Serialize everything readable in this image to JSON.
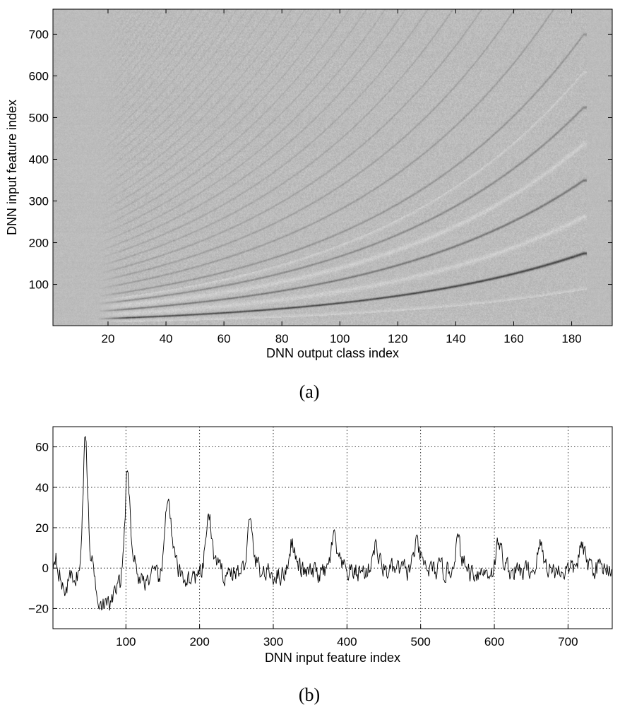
{
  "chart_data": [
    {
      "type": "heatmap",
      "caption": "(a)",
      "xlabel": "DNN output class index",
      "ylabel": "DNN input feature index",
      "xlim": [
        1,
        194
      ],
      "ylim": [
        1,
        760
      ],
      "xticks": [
        20,
        40,
        60,
        80,
        100,
        120,
        140,
        160,
        180
      ],
      "yticks": [
        100,
        200,
        300,
        400,
        500,
        600,
        700
      ],
      "colormap": "gray",
      "background_color": "#bcbcbc",
      "description_of_content": {
        "harmonic_onset_class": 24,
        "harmonic_end_class": 184,
        "harmonics": [
          {
            "order": 1,
            "feature_at_class_24": 20,
            "feature_at_class_184": 175
          },
          {
            "order": 2,
            "feature_at_class_24": 40,
            "feature_at_class_184": 355
          },
          {
            "order": 3,
            "feature_at_class_24": 60,
            "feature_at_class_184": 540
          },
          {
            "order": 4,
            "feature_at_class_24": 80,
            "feature_at_class_184": 720
          }
        ]
      }
    },
    {
      "type": "line",
      "caption": "(b)",
      "xlabel": "DNN input feature index",
      "ylabel": "",
      "xlim": [
        1,
        760
      ],
      "ylim": [
        -30,
        70
      ],
      "xticks": [
        100,
        200,
        300,
        400,
        500,
        600,
        700
      ],
      "yticks": [
        -20,
        0,
        20,
        40,
        60
      ],
      "grid": true,
      "series": [
        {
          "peaks": [
            {
              "x": 45,
              "y": 63
            },
            {
              "x": 102,
              "y": 44
            },
            {
              "x": 157,
              "y": 37
            },
            {
              "x": 212,
              "y": 26
            },
            {
              "x": 268,
              "y": 21
            },
            {
              "x": 325,
              "y": 13
            },
            {
              "x": 382,
              "y": 14
            },
            {
              "x": 438,
              "y": 11
            },
            {
              "x": 494,
              "y": 11
            },
            {
              "x": 550,
              "y": 13
            },
            {
              "x": 606,
              "y": 12
            },
            {
              "x": 662,
              "y": 11
            },
            {
              "x": 718,
              "y": 10
            }
          ],
          "baseline": [
            {
              "x": 1,
              "y": 2
            },
            {
              "x": 5,
              "y": 8
            },
            {
              "x": 15,
              "y": -12
            },
            {
              "x": 25,
              "y": -5
            },
            {
              "x": 35,
              "y": -3
            },
            {
              "x": 60,
              "y": -13
            },
            {
              "x": 75,
              "y": -20
            },
            {
              "x": 88,
              "y": -10
            },
            {
              "x": 130,
              "y": -5
            },
            {
              "x": 190,
              "y": -5
            },
            {
              "x": 240,
              "y": -2
            },
            {
              "x": 300,
              "y": -3
            },
            {
              "x": 400,
              "y": -2
            },
            {
              "x": 500,
              "y": -1
            },
            {
              "x": 600,
              "y": -2
            },
            {
              "x": 700,
              "y": -1
            },
            {
              "x": 760,
              "y": 1
            }
          ]
        }
      ]
    }
  ]
}
